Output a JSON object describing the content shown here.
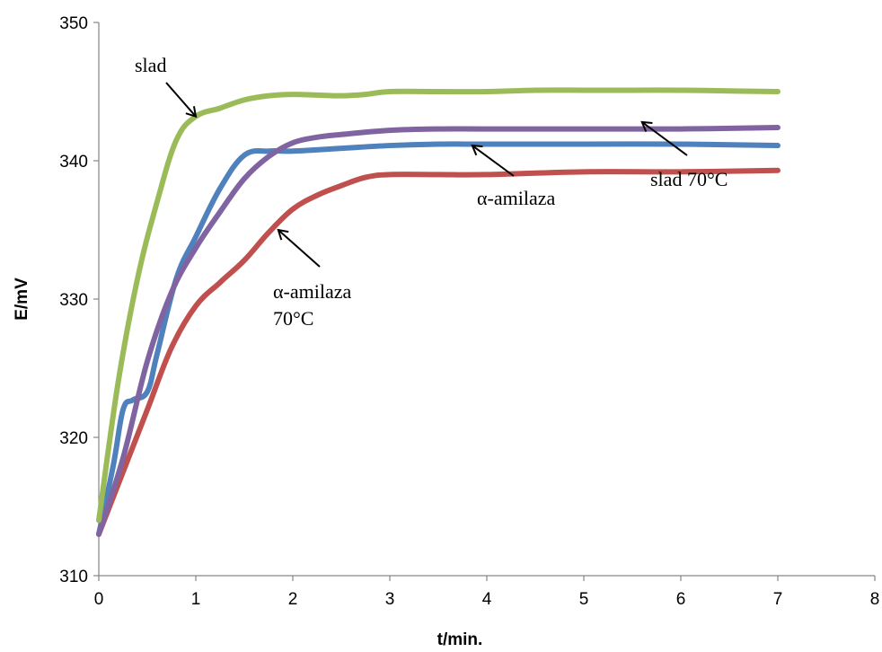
{
  "chart_data": {
    "type": "line",
    "title": "",
    "xlabel": "t/min.",
    "ylabel": "E/mV",
    "xlim": [
      0,
      8
    ],
    "ylim": [
      310,
      350
    ],
    "xticks": [
      "0",
      "1",
      "2",
      "3",
      "4",
      "5",
      "6",
      "7",
      "8"
    ],
    "yticks": [
      "310",
      "320",
      "330",
      "340",
      "350"
    ],
    "grid": false,
    "legend": "none",
    "series": [
      {
        "name": "slad",
        "color": "#9BBB59",
        "x": [
          0,
          0.2,
          0.4,
          0.6,
          0.8,
          1.0,
          1.25,
          1.5,
          1.75,
          2.0,
          2.25,
          2.5,
          2.75,
          3.0,
          3.5,
          4.0,
          4.5,
          5.0,
          5.5,
          6.0,
          6.5,
          7.0
        ],
        "y": [
          314,
          324,
          331.5,
          337,
          341.5,
          343.2,
          343.8,
          344.4,
          344.7,
          344.8,
          344.75,
          344.7,
          344.8,
          345,
          345,
          345,
          345.1,
          345.1,
          345.1,
          345.1,
          345.05,
          345
        ]
      },
      {
        "name": "α-amilaza",
        "color": "#4F81BD",
        "x": [
          0,
          0.15,
          0.25,
          0.35,
          0.5,
          0.6,
          0.8,
          1.0,
          1.25,
          1.5,
          1.75,
          2.0,
          2.5,
          3.0,
          3.5,
          4.0,
          5.0,
          6.0,
          7.0
        ],
        "y": [
          313,
          318,
          322,
          322.7,
          323.3,
          326,
          331.5,
          334.5,
          338,
          340.4,
          340.7,
          340.7,
          340.9,
          341.1,
          341.2,
          341.2,
          341.2,
          341.2,
          341.1
        ]
      },
      {
        "name": "slad 70°C",
        "color": "#8064A2",
        "x": [
          0,
          0.25,
          0.5,
          0.75,
          1.0,
          1.25,
          1.5,
          1.75,
          2.0,
          2.25,
          2.5,
          3.0,
          3.5,
          4.0,
          5.0,
          6.0,
          7.0
        ],
        "y": [
          313,
          318.5,
          325.5,
          330.5,
          333.7,
          336.3,
          338.7,
          340.3,
          341.3,
          341.7,
          341.9,
          342.2,
          342.3,
          342.3,
          342.3,
          342.3,
          342.4
        ]
      },
      {
        "name": "α-amilaza 70°C",
        "color": "#C0504D",
        "x": [
          0,
          0.25,
          0.5,
          0.75,
          1.0,
          1.25,
          1.5,
          1.75,
          2.0,
          2.25,
          2.5,
          2.75,
          3.0,
          3.5,
          4.0,
          5.0,
          6.0,
          7.0
        ],
        "y": [
          313,
          317.5,
          322,
          326.5,
          329.5,
          331.2,
          332.8,
          334.8,
          336.5,
          337.5,
          338.2,
          338.8,
          339,
          339,
          339,
          339.2,
          339.2,
          339.3
        ]
      }
    ],
    "annotations": [
      {
        "id": "ann-slad",
        "lines": [
          "slad"
        ],
        "arrow_to": [
          1.0,
          343.2
        ]
      },
      {
        "id": "ann-amilaza",
        "lines": [
          "α-amilaza"
        ],
        "arrow_to": [
          3.85,
          341.1
        ]
      },
      {
        "id": "ann-slad70",
        "lines": [
          "slad 70°C"
        ],
        "arrow_to": [
          5.6,
          342.8
        ]
      },
      {
        "id": "ann-amilaza70",
        "lines": [
          "α-amilaza",
          "70°C"
        ],
        "arrow_to": [
          1.85,
          335
        ]
      }
    ]
  }
}
